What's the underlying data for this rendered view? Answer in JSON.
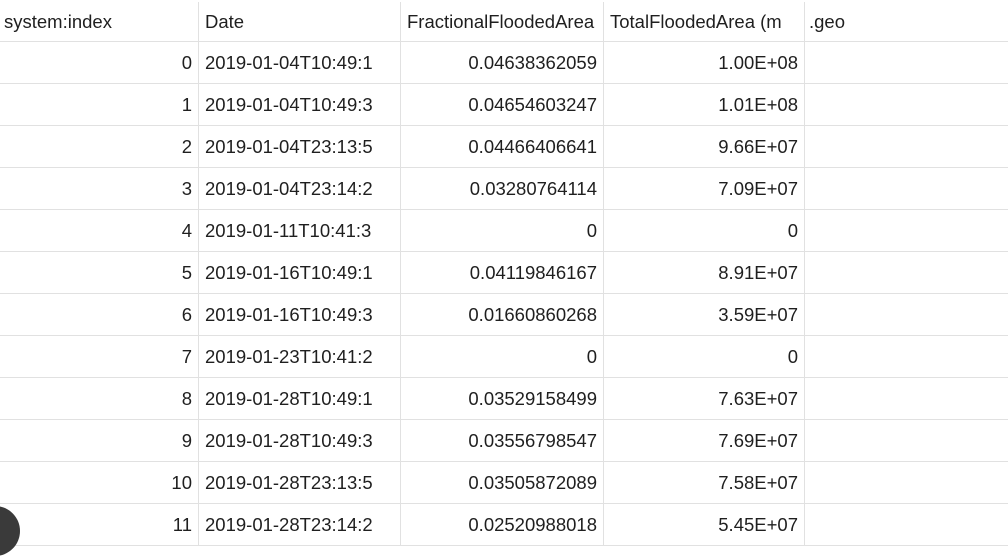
{
  "columns": [
    "system:index",
    "Date",
    "FractionalFloodedArea",
    "TotalFloodedArea (m",
    ".geo"
  ],
  "rows": [
    {
      "index": "0",
      "date": "2019-01-04T10:49:1",
      "fractional": "0.04638362059",
      "total": "1.00E+08",
      "geo": ""
    },
    {
      "index": "1",
      "date": "2019-01-04T10:49:3",
      "fractional": "0.04654603247",
      "total": "1.01E+08",
      "geo": ""
    },
    {
      "index": "2",
      "date": "2019-01-04T23:13:5",
      "fractional": "0.04466406641",
      "total": "9.66E+07",
      "geo": ""
    },
    {
      "index": "3",
      "date": "2019-01-04T23:14:2",
      "fractional": "0.03280764114",
      "total": "7.09E+07",
      "geo": ""
    },
    {
      "index": "4",
      "date": "2019-01-11T10:41:3",
      "fractional": "0",
      "total": "0",
      "geo": ""
    },
    {
      "index": "5",
      "date": "2019-01-16T10:49:1",
      "fractional": "0.04119846167",
      "total": "8.91E+07",
      "geo": ""
    },
    {
      "index": "6",
      "date": "2019-01-16T10:49:3",
      "fractional": "0.01660860268",
      "total": "3.59E+07",
      "geo": ""
    },
    {
      "index": "7",
      "date": "2019-01-23T10:41:2",
      "fractional": "0",
      "total": "0",
      "geo": ""
    },
    {
      "index": "8",
      "date": "2019-01-28T10:49:1",
      "fractional": "0.03529158499",
      "total": "7.63E+07",
      "geo": ""
    },
    {
      "index": "9",
      "date": "2019-01-28T10:49:3",
      "fractional": "0.03556798547",
      "total": "7.69E+07",
      "geo": ""
    },
    {
      "index": "10",
      "date": "2019-01-28T23:13:5",
      "fractional": "0.03505872089",
      "total": "7.58E+07",
      "geo": ""
    },
    {
      "index": "11",
      "date": "2019-01-28T23:14:2",
      "fractional": "0.02520988018",
      "total": "5.45E+07",
      "geo": ""
    }
  ]
}
